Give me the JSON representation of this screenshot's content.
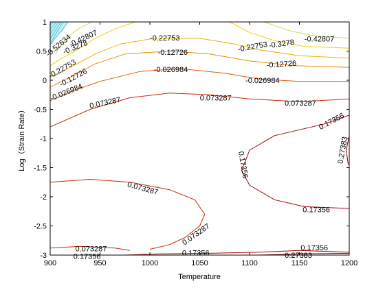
{
  "chart_data": {
    "type": "contour",
    "title": "",
    "xlabel": "Temperature",
    "ylabel": "Log（Strain Rate）",
    "xlim": [
      900,
      1200
    ],
    "ylim": [
      -3,
      1
    ],
    "xticks": [
      "900",
      "950",
      "1000",
      "1050",
      "1100",
      "1150",
      "1200"
    ],
    "yticks": [
      "1",
      "0.5",
      "0",
      "-0.5",
      "-1",
      "-1.5",
      "-2",
      "-2.5",
      "-3"
    ],
    "grid": false,
    "box": true,
    "levels": [
      {
        "value": "-0.52634",
        "color": "#3fc8d2",
        "lines": [
          [
            [
              900,
              0.6
            ],
            [
              905,
              0.72
            ],
            [
              912,
              0.86
            ],
            [
              918,
              1.0
            ]
          ]
        ],
        "labels": [
          {
            "text": "-0.52634",
            "x": 908,
            "y": 0.6,
            "angle": -40
          }
        ]
      },
      {
        "value": "-0.42807",
        "color": "#c9df57",
        "lines": [
          [
            [
              905,
              0.45
            ],
            [
              912,
              0.62
            ],
            [
              920,
              0.78
            ],
            [
              930,
              0.9
            ],
            [
              942,
              1.0
            ]
          ],
          [
            [
              1115,
              1.0
            ],
            [
              1140,
              0.85
            ],
            [
              1165,
              0.76
            ],
            [
              1200,
              0.72
            ]
          ]
        ],
        "labels": [
          {
            "text": "-0.42807",
            "x": 933,
            "y": 0.72,
            "angle": -25
          },
          {
            "text": "-0.42807",
            "x": 1170,
            "y": 0.71,
            "angle": 0
          }
        ]
      },
      {
        "value": "-0.3278",
        "color": "#f2d200",
        "lines": [
          [
            [
              900,
              0.25
            ],
            [
              912,
              0.38
            ],
            [
              925,
              0.5
            ],
            [
              945,
              0.72
            ],
            [
              965,
              0.88
            ],
            [
              985,
              1.0
            ]
          ],
          [
            [
              1080,
              1.0
            ],
            [
              1100,
              0.82
            ],
            [
              1125,
              0.68
            ],
            [
              1155,
              0.58
            ],
            [
              1200,
              0.55
            ]
          ]
        ],
        "labels": [
          {
            "text": "-0.3278",
            "x": 925,
            "y": 0.57,
            "angle": -22
          },
          {
            "text": "-0.3278",
            "x": 1132,
            "y": 0.63,
            "angle": -8
          }
        ]
      },
      {
        "value": "-0.22753",
        "color": "#f2b200",
        "lines": [
          [
            [
              900,
              0.05
            ],
            [
              918,
              0.2
            ],
            [
              945,
              0.45
            ],
            [
              970,
              0.62
            ],
            [
              1005,
              0.72
            ],
            [
              1050,
              0.72
            ],
            [
              1085,
              0.62
            ],
            [
              1110,
              0.52
            ],
            [
              1150,
              0.42
            ],
            [
              1200,
              0.38
            ]
          ]
        ],
        "labels": [
          {
            "text": "-0.22753",
            "x": 912,
            "y": 0.2,
            "angle": -30
          },
          {
            "text": "-0.22753",
            "x": 1015,
            "y": 0.73,
            "angle": 0
          },
          {
            "text": "-0.22753",
            "x": 1103,
            "y": 0.58,
            "angle": -10
          }
        ]
      },
      {
        "value": "-0.12726",
        "color": "#ee8a00",
        "lines": [
          [
            [
              900,
              -0.12
            ],
            [
              920,
              0.05
            ],
            [
              945,
              0.28
            ],
            [
              975,
              0.45
            ],
            [
              1020,
              0.5
            ],
            [
              1060,
              0.45
            ],
            [
              1100,
              0.33
            ],
            [
              1145,
              0.25
            ],
            [
              1200,
              0.22
            ]
          ]
        ],
        "labels": [
          {
            "text": "-0.12726",
            "x": 923,
            "y": 0.05,
            "angle": -28
          },
          {
            "text": "-0.12726",
            "x": 1023,
            "y": 0.48,
            "angle": 0
          },
          {
            "text": "-0.12726",
            "x": 1132,
            "y": 0.28,
            "angle": -4
          }
        ]
      },
      {
        "value": "-0.026984",
        "color": "#e05a00",
        "lines": [
          [
            [
              900,
              -0.35
            ],
            [
              920,
              -0.2
            ],
            [
              950,
              -0.02
            ],
            [
              990,
              0.15
            ],
            [
              1030,
              0.2
            ],
            [
              1075,
              0.12
            ],
            [
              1110,
              0.02
            ],
            [
              1150,
              -0.02
            ],
            [
              1200,
              -0.02
            ]
          ]
        ],
        "labels": [
          {
            "text": "-0.026984",
            "x": 916,
            "y": -0.2,
            "angle": -22
          },
          {
            "text": "-0.026984",
            "x": 1021,
            "y": 0.19,
            "angle": 0
          },
          {
            "text": "-0.026984",
            "x": 1113,
            "y": 0.0,
            "angle": 0
          }
        ]
      },
      {
        "value": "0.073287",
        "color": "#c82800",
        "lines": [
          [
            [
              900,
              -0.8
            ],
            [
              940,
              -0.5
            ],
            [
              980,
              -0.3
            ],
            [
              1020,
              -0.22
            ],
            [
              1060,
              -0.25
            ],
            [
              1100,
              -0.32
            ],
            [
              1150,
              -0.37
            ],
            [
              1200,
              -0.32
            ]
          ],
          [
            [
              900,
              -1.75
            ],
            [
              940,
              -1.7
            ],
            [
              980,
              -1.75
            ],
            [
              1020,
              -1.88
            ],
            [
              1045,
              -2.05
            ],
            [
              1055,
              -2.3
            ],
            [
              1050,
              -2.5
            ],
            [
              1035,
              -2.7
            ],
            [
              1020,
              -2.82
            ],
            [
              1000,
              -2.9
            ]
          ],
          [
            [
              900,
              -2.88
            ],
            [
              930,
              -2.85
            ],
            [
              965,
              -2.88
            ],
            [
              980,
              -2.92
            ]
          ]
        ],
        "labels": [
          {
            "text": "0.073287",
            "x": 955,
            "y": -0.38,
            "angle": -12
          },
          {
            "text": "0.073287",
            "x": 1066,
            "y": -0.3,
            "angle": 0
          },
          {
            "text": "0.073287",
            "x": 1151,
            "y": -0.39,
            "angle": 0
          },
          {
            "text": "0.073287",
            "x": 993,
            "y": -1.85,
            "angle": 15
          },
          {
            "text": "0.073287",
            "x": 1046,
            "y": -2.64,
            "angle": -35
          },
          {
            "text": "0.073287",
            "x": 941,
            "y": -2.89,
            "angle": 0
          }
        ]
      },
      {
        "value": "0.17356",
        "color": "#a80000",
        "lines": [
          [
            [
              1200,
              -0.6
            ],
            [
              1175,
              -0.75
            ],
            [
              1150,
              -0.85
            ],
            [
              1125,
              -0.95
            ],
            [
              1100,
              -1.2
            ],
            [
              1092,
              -1.55
            ],
            [
              1100,
              -1.8
            ],
            [
              1125,
              -2.05
            ],
            [
              1155,
              -2.17
            ],
            [
              1200,
              -2.2
            ]
          ],
          [
            [
              975,
              -3.0
            ],
            [
              1010,
              -2.98
            ],
            [
              1060,
              -2.97
            ],
            [
              1110,
              -2.95
            ],
            [
              1150,
              -2.92
            ],
            [
              1200,
              -2.95
            ]
          ]
        ],
        "labels": [
          {
            "text": "0.17356",
            "x": 1182,
            "y": -0.7,
            "angle": -28
          },
          {
            "text": "0.17356",
            "x": 1094,
            "y": -1.45,
            "angle": 80
          },
          {
            "text": "0.17356",
            "x": 1167,
            "y": -2.22,
            "angle": 0
          },
          {
            "text": "0.17356",
            "x": 1046,
            "y": -2.96,
            "angle": 0
          },
          {
            "text": "0.17356",
            "x": 1165,
            "y": -2.87,
            "angle": 0
          },
          {
            "text": "0.17356",
            "x": 937,
            "y": -3.02,
            "angle": 0
          }
        ]
      },
      {
        "value": "0.27383",
        "color": "#800000",
        "lines": [
          [
            [
              1200,
              -0.95
            ],
            [
              1197,
              -1.2
            ],
            [
              1199,
              -1.45
            ]
          ],
          [
            [
              1108,
              -3.0
            ],
            [
              1150,
              -2.98
            ],
            [
              1200,
              -2.97
            ]
          ]
        ],
        "labels": [
          {
            "text": "0.27383",
            "x": 1193,
            "y": -1.2,
            "angle": -80
          },
          {
            "text": "0.27383",
            "x": 1149,
            "y": -3.0,
            "angle": 0
          }
        ]
      }
    ]
  }
}
